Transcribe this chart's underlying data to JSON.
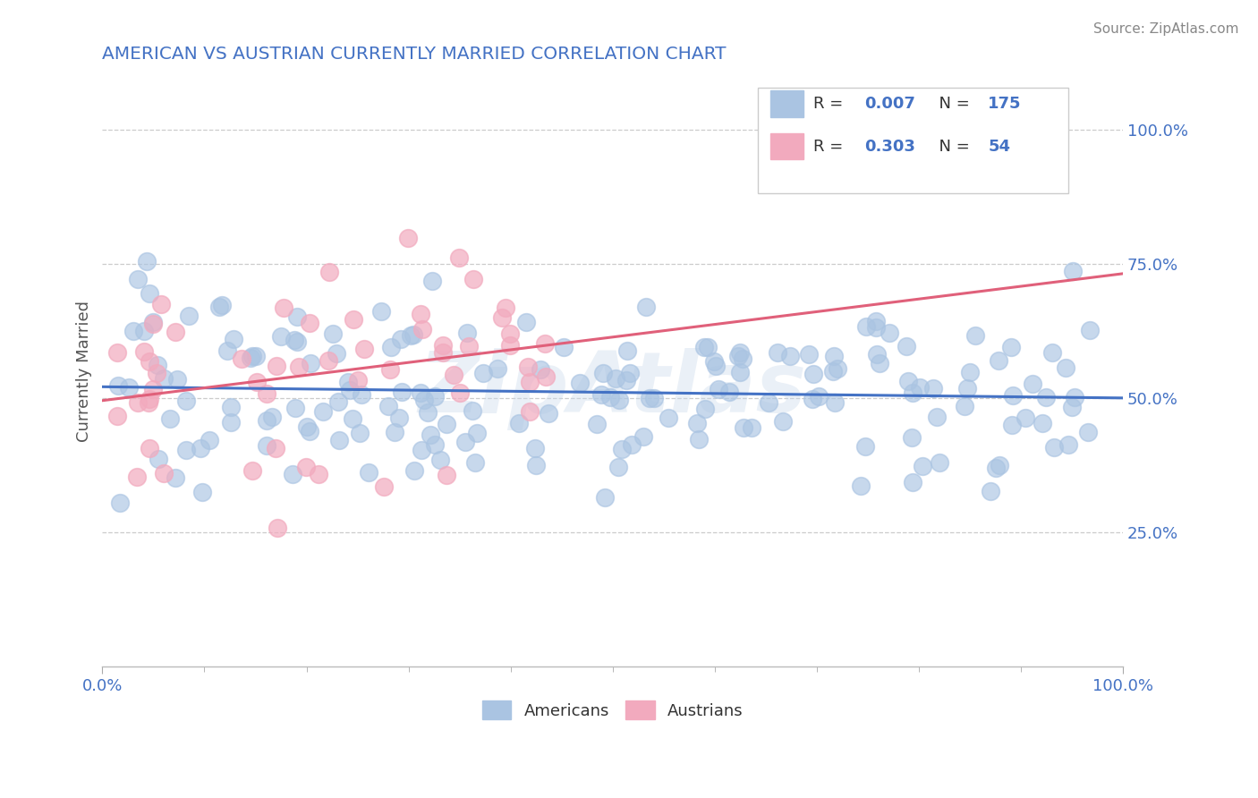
{
  "title": "AMERICAN VS AUSTRIAN CURRENTLY MARRIED CORRELATION CHART",
  "source_text": "Source: ZipAtlas.com",
  "ylabel": "Currently Married",
  "xmin": 0.0,
  "xmax": 1.0,
  "ymin": 0.0,
  "ymax": 1.1,
  "xtick_labels": [
    "0.0%",
    "100.0%"
  ],
  "xtick_positions": [
    0.0,
    1.0
  ],
  "ytick_labels": [
    "25.0%",
    "50.0%",
    "75.0%",
    "100.0%"
  ],
  "ytick_positions": [
    0.25,
    0.5,
    0.75,
    1.0
  ],
  "american_color": "#aac4e2",
  "austrian_color": "#f2aabe",
  "american_line_color": "#4472c4",
  "austrian_line_color": "#e0607a",
  "R_american": 0.007,
  "N_american": 175,
  "R_austrian": 0.303,
  "N_austrian": 54,
  "legend_label_american": "Americans",
  "legend_label_austrian": "Austrians",
  "watermark": "ZipAtlas",
  "background_color": "#ffffff",
  "title_color": "#4472c4",
  "tick_label_color": "#4472c4",
  "axis_label_color": "#555555",
  "grid_color": "#cccccc",
  "legend_R_color": "#4472c4",
  "legend_text_color": "#333333"
}
